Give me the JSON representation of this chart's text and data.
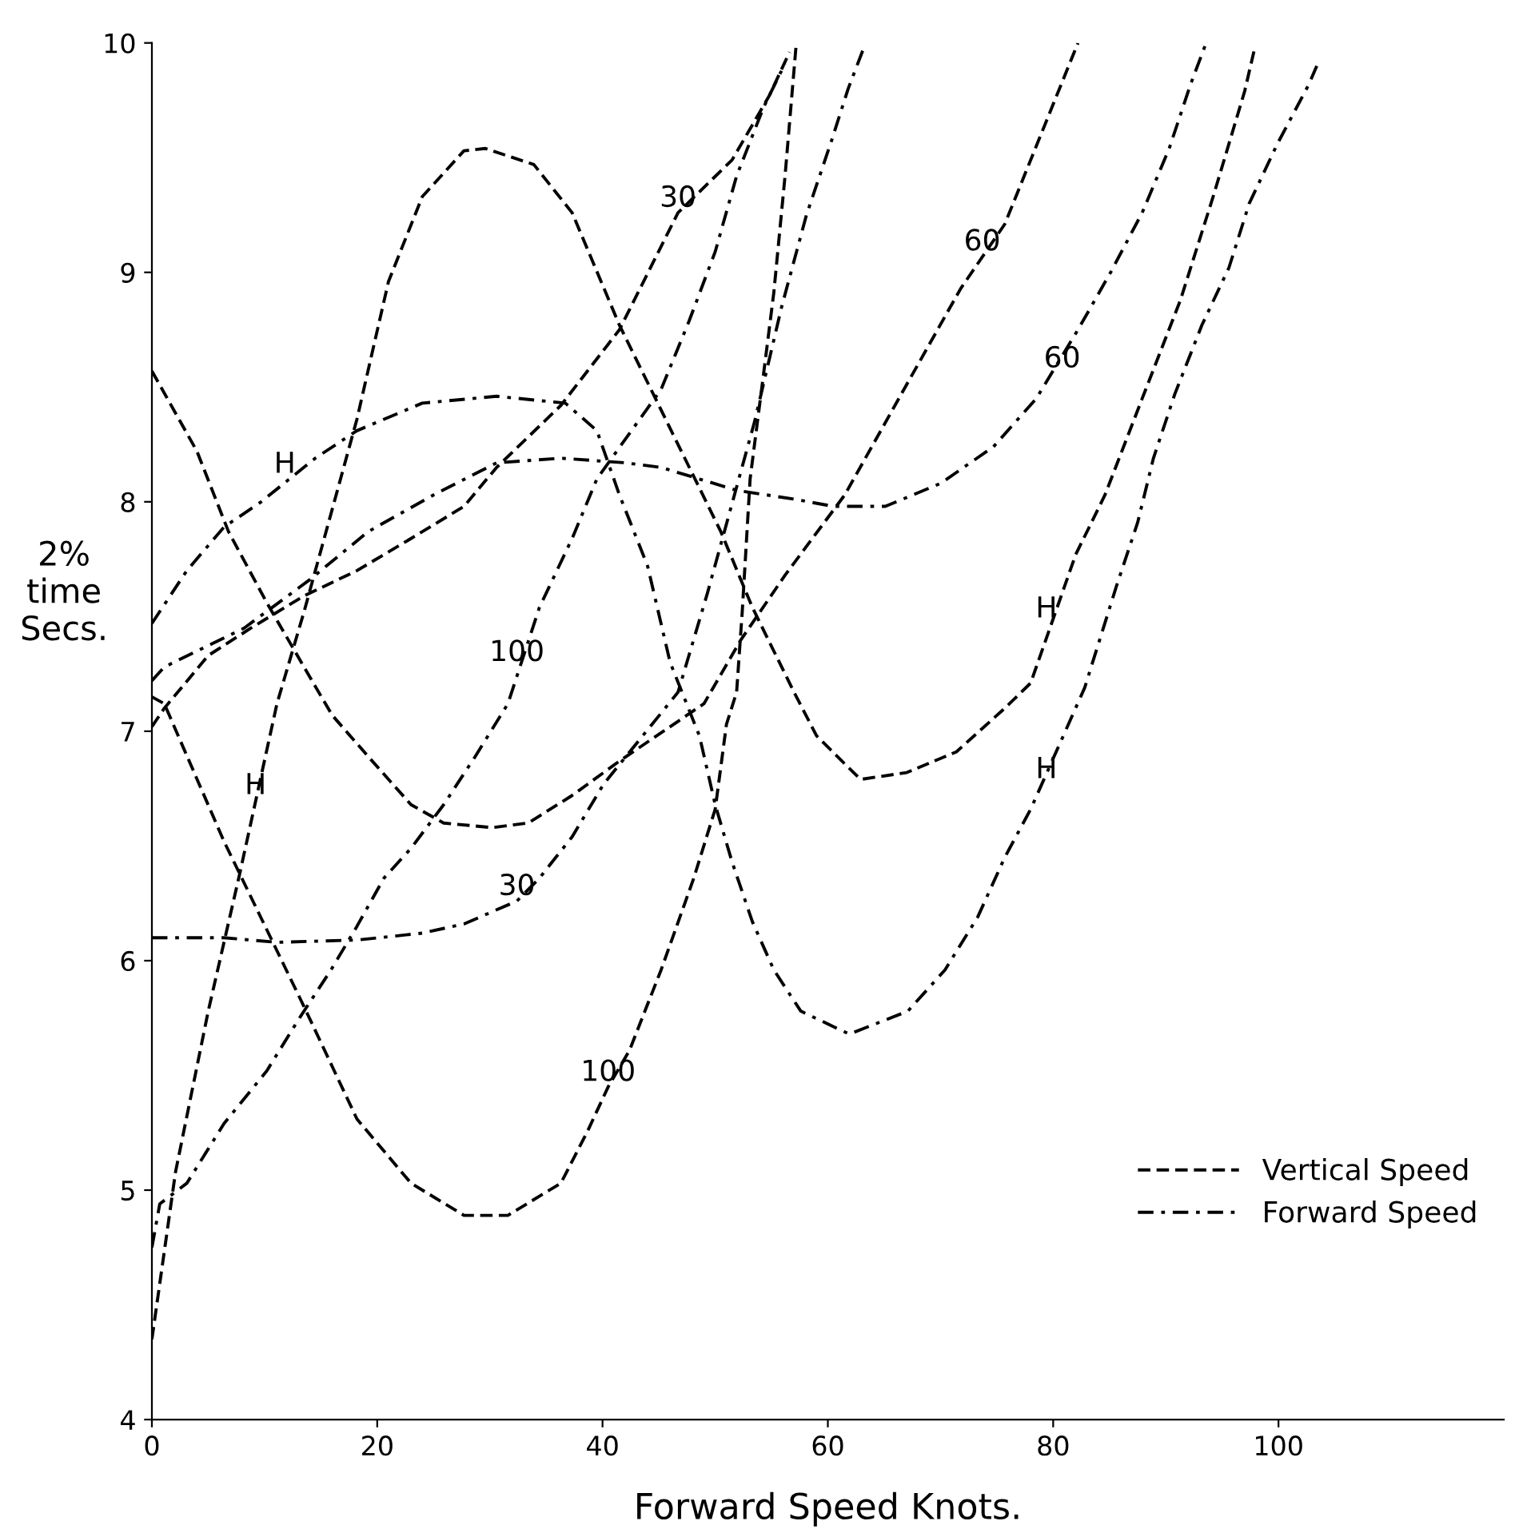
{
  "chart_data": {
    "type": "line",
    "xlabel": "Forward Speed Knots.",
    "ylabel": "2%\ntime\nSecs.",
    "xlim": [
      0,
      120
    ],
    "ylim": [
      4,
      10
    ],
    "xticks": [
      0,
      20,
      40,
      60,
      80,
      100
    ],
    "yticks": [
      4,
      5,
      6,
      7,
      8,
      9,
      10
    ],
    "grid": false,
    "legend": "bottom right",
    "marker": "none",
    "series": [
      {
        "name": "Vertical Speed",
        "color": "#000000",
        "line_style": "dashed",
        "x": [
          0,
          2.1,
          5,
          7.8,
          11.1,
          13.5,
          18.2,
          21,
          24,
          27.7,
          29.6,
          33.9,
          37.3,
          41.5,
          47.7,
          50.5,
          53.3,
          57,
          59,
          62.9,
          67,
          71.4,
          75.7,
          78,
          82,
          84.6,
          87.9,
          91.3,
          94.2,
          97,
          97.9
        ],
        "values": [
          4.35,
          5.08,
          5.78,
          6.38,
          7.12,
          7.52,
          8.36,
          8.96,
          9.33,
          9.53,
          9.54,
          9.47,
          9.26,
          8.77,
          8.15,
          7.87,
          7.54,
          7.17,
          6.98,
          6.79,
          6.82,
          6.91,
          7.1,
          7.21,
          7.77,
          8.03,
          8.45,
          8.88,
          9.33,
          9.79,
          9.98
        ]
      },
      {
        "color": "#000000",
        "line_style": "dashed",
        "x": [
          0,
          4,
          6.8,
          10.2,
          13.5,
          16,
          19.2,
          23,
          25.9,
          30.2,
          33.4,
          37.3,
          41.5,
          49,
          52.3,
          56.2,
          61.5,
          67.1,
          71.8,
          75.7,
          82.2
        ],
        "values": [
          8.57,
          8.22,
          7.87,
          7.56,
          7.28,
          7.07,
          6.89,
          6.68,
          6.6,
          6.58,
          6.6,
          6.72,
          6.87,
          7.12,
          7.4,
          7.68,
          8.03,
          8.52,
          8.93,
          9.21,
          10.0
        ]
      },
      {
        "color": "#000000",
        "line_style": "dashed",
        "x": [
          0,
          1.1,
          6.4,
          13.5,
          18.2,
          23,
          27.7,
          31.6,
          36.3,
          38.7,
          40.5,
          42.4,
          45.2,
          48.1,
          50,
          51,
          51.9,
          52.4,
          53.1,
          54.3,
          55.2,
          56.2,
          57.2
        ],
        "values": [
          7.15,
          7.12,
          6.52,
          5.8,
          5.31,
          5.03,
          4.89,
          4.89,
          5.03,
          5.26,
          5.45,
          5.61,
          5.96,
          6.36,
          6.66,
          7.03,
          7.17,
          7.52,
          8.1,
          8.56,
          8.91,
          9.42,
          10.0
        ]
      },
      {
        "color": "#000000",
        "line_style": "dashed",
        "x": [
          0,
          1.1,
          5,
          8.8,
          13.5,
          18.2,
          23,
          27.7,
          30.6,
          36.3,
          41.5,
          46.7,
          51.5,
          54.8,
          56.6
        ],
        "values": [
          7.02,
          7.1,
          7.33,
          7.45,
          7.59,
          7.7,
          7.84,
          7.98,
          8.15,
          8.42,
          8.75,
          9.26,
          9.49,
          9.77,
          9.96
        ]
      },
      {
        "name": "Forward Speed",
        "color": "#000000",
        "line_style": "dashdot",
        "x": [
          0,
          3.1,
          6.4,
          9.7,
          14.5,
          18.2,
          24,
          30.6,
          36.7,
          39.5,
          41.5,
          44,
          46,
          48.6,
          50,
          51.5,
          53.3,
          55.2,
          57.6,
          61.9,
          67.1,
          70.4,
          73.3,
          75.7,
          78,
          82.8,
          85.6,
          87.5,
          88.9,
          90.8,
          93.2,
          95.6,
          97.4,
          99.9,
          102.7,
          103.4
        ],
        "values": [
          7.47,
          7.7,
          7.89,
          8.0,
          8.19,
          8.31,
          8.43,
          8.46,
          8.43,
          8.31,
          8.03,
          7.72,
          7.3,
          6.98,
          6.68,
          6.43,
          6.17,
          5.96,
          5.78,
          5.68,
          5.78,
          5.96,
          6.19,
          6.45,
          6.66,
          7.19,
          7.63,
          7.91,
          8.19,
          8.47,
          8.77,
          9.02,
          9.3,
          9.56,
          9.82,
          9.9
        ]
      },
      {
        "color": "#000000",
        "line_style": "dashdot",
        "x": [
          0,
          1.1,
          8.2,
          14,
          19.2,
          25,
          30.6,
          36.3,
          42,
          45.2,
          51.9,
          57.2,
          60.5,
          65.1,
          70,
          74.7,
          78.5,
          82.2,
          85.1,
          87.9,
          90.3,
          92.2,
          93.5
        ],
        "values": [
          7.22,
          7.28,
          7.45,
          7.66,
          7.87,
          8.03,
          8.17,
          8.19,
          8.17,
          8.15,
          8.05,
          8.01,
          7.98,
          7.98,
          8.08,
          8.24,
          8.45,
          8.75,
          9.0,
          9.26,
          9.54,
          9.82,
          9.99
        ]
      },
      {
        "color": "#000000",
        "line_style": "dashdot",
        "x": [
          0,
          6.4,
          11.1,
          18.2,
          24,
          27.7,
          32.4,
          34.4,
          37.3,
          40.1,
          46.7,
          49.3,
          50.7,
          52.1,
          53.5,
          55.9,
          58.1,
          60.3,
          61.8,
          63.2
        ],
        "values": [
          6.1,
          6.1,
          6.08,
          6.09,
          6.12,
          6.16,
          6.26,
          6.36,
          6.54,
          6.77,
          7.17,
          7.6,
          7.85,
          8.1,
          8.35,
          8.85,
          9.25,
          9.57,
          9.8,
          9.98
        ]
      },
      {
        "color": "#000000",
        "line_style": "dashdot",
        "x": [
          0,
          0.7,
          3.1,
          6.4,
          10.2,
          13.1,
          15.9,
          18.2,
          20.6,
          23,
          25.9,
          28.7,
          31.6,
          34.4,
          37.3,
          39.5,
          45.2,
          47.7,
          50,
          51.9,
          54.3,
          56.2
        ],
        "values": [
          4.75,
          4.94,
          5.03,
          5.29,
          5.52,
          5.75,
          5.96,
          6.15,
          6.36,
          6.49,
          6.68,
          6.89,
          7.12,
          7.54,
          7.84,
          8.1,
          8.49,
          8.79,
          9.09,
          9.42,
          9.72,
          9.91
        ]
      }
    ],
    "annotations": [
      {
        "text": "H",
        "x": 9.2,
        "y": 6.7
      },
      {
        "text": "H",
        "x": 11.8,
        "y": 8.1
      },
      {
        "text": "100",
        "x": 32.4,
        "y": 7.28
      },
      {
        "text": "30",
        "x": 32.4,
        "y": 6.26
      },
      {
        "text": "100",
        "x": 40.5,
        "y": 5.45
      },
      {
        "text": "30",
        "x": 46.7,
        "y": 9.26
      },
      {
        "text": "60",
        "x": 73.7,
        "y": 9.07
      },
      {
        "text": "60",
        "x": 80.8,
        "y": 8.56
      },
      {
        "text": "H",
        "x": 79.4,
        "y": 7.47
      },
      {
        "text": "H",
        "x": 79.4,
        "y": 6.77
      }
    ]
  }
}
